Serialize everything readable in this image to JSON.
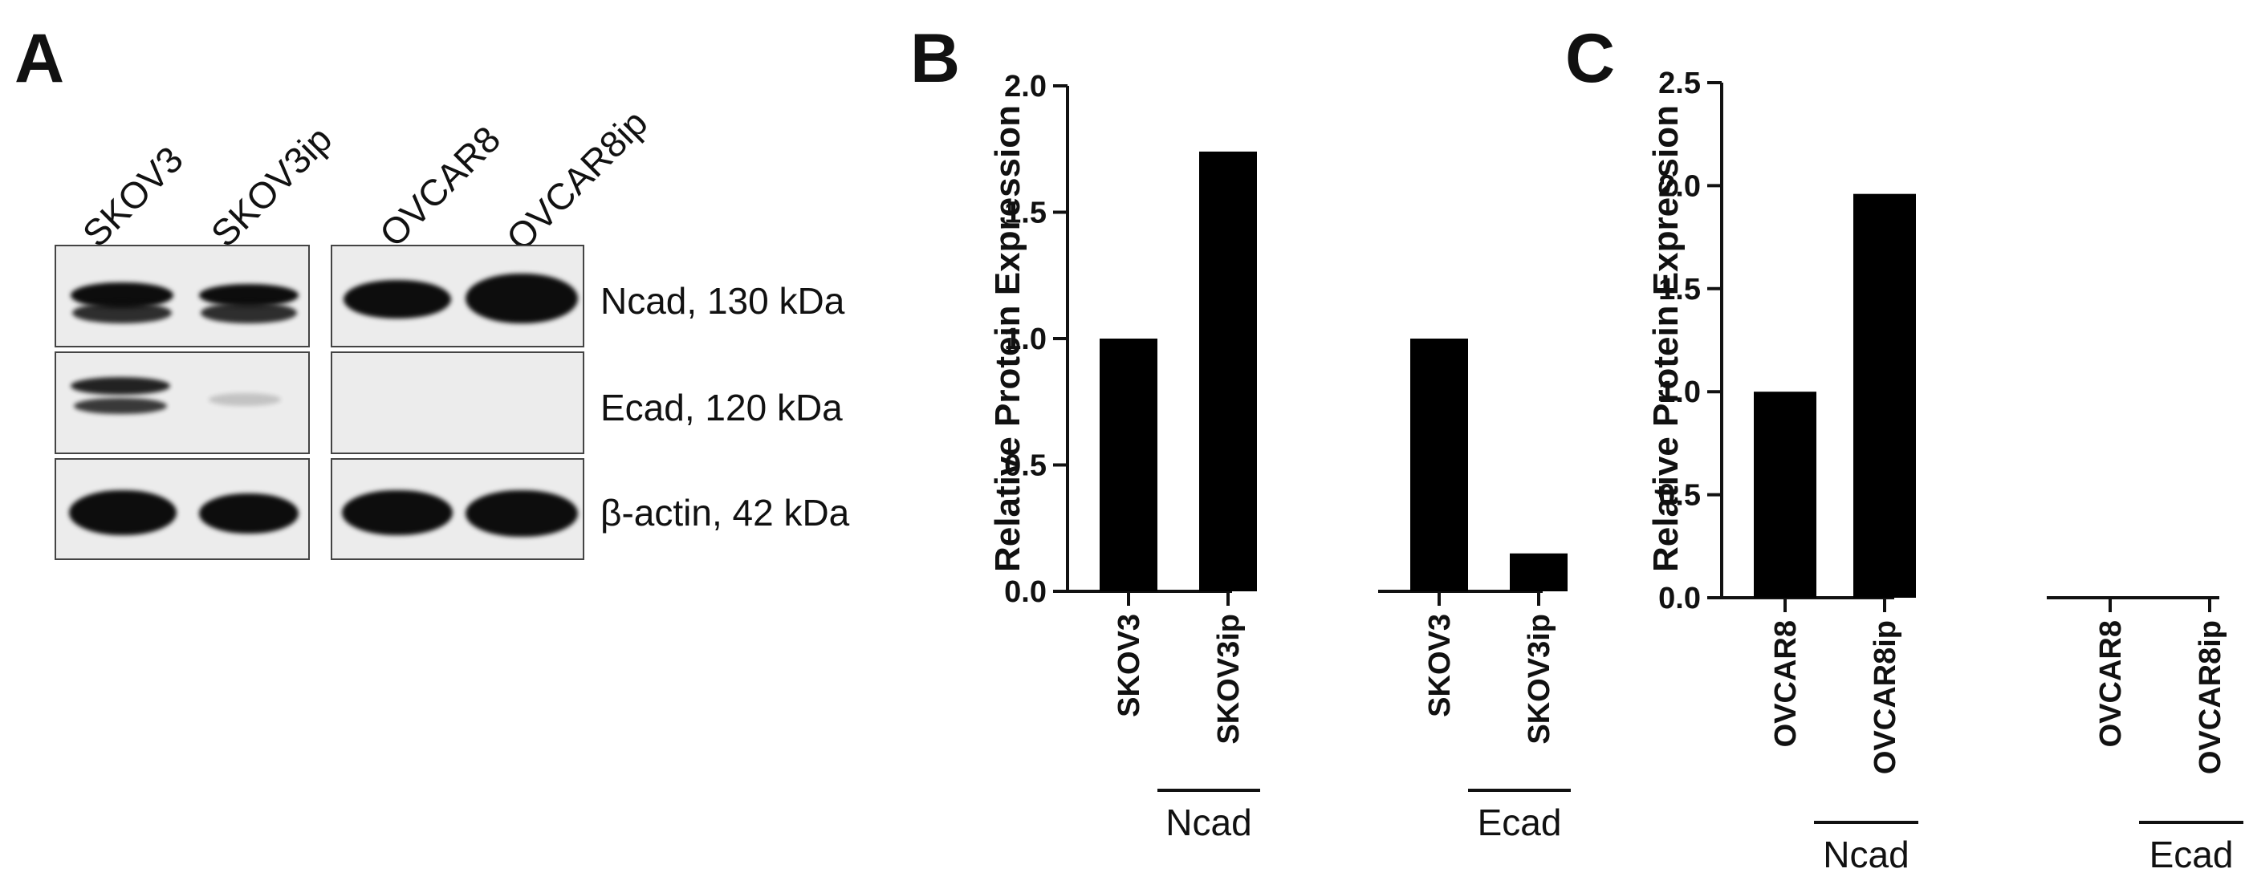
{
  "panel_a": {
    "letter": "A",
    "lanes": [
      "SKOV3",
      "SKOV3ip",
      "OVCAR8",
      "OVCAR8ip"
    ],
    "rows": [
      "Ncad, 130 kDa",
      "Ecad, 120 kDa",
      "β-actin, 42 kDa"
    ]
  },
  "chart_data": [
    {
      "panel": "B",
      "type": "bar",
      "ylabel": "Relative Protein Expression",
      "ylim": [
        0,
        2.0
      ],
      "yticks": [
        "0.0",
        "0.5",
        "1.0",
        "1.5",
        "2.0"
      ],
      "groups": [
        {
          "name": "Ncad",
          "categories": [
            "SKOV3",
            "SKOV3ip"
          ],
          "values": [
            1.0,
            1.74
          ]
        },
        {
          "name": "Ecad",
          "categories": [
            "SKOV3",
            "SKOV3ip"
          ],
          "values": [
            1.0,
            0.15
          ]
        }
      ],
      "bar_color": "#000000"
    },
    {
      "panel": "C",
      "type": "bar",
      "ylabel": "Relative Protein Expression",
      "ylim": [
        0,
        2.5
      ],
      "yticks": [
        "0.0",
        "0.5",
        "1.0",
        "1.5",
        "2.0",
        "2.5"
      ],
      "groups": [
        {
          "name": "Ncad",
          "categories": [
            "OVCAR8",
            "OVCAR8ip"
          ],
          "values": [
            1.0,
            1.96
          ]
        },
        {
          "name": "Ecad",
          "categories": [
            "OVCAR8",
            "OVCAR8ip"
          ],
          "values": [
            0.0,
            0.0
          ]
        }
      ],
      "bar_color": "#000000"
    }
  ]
}
